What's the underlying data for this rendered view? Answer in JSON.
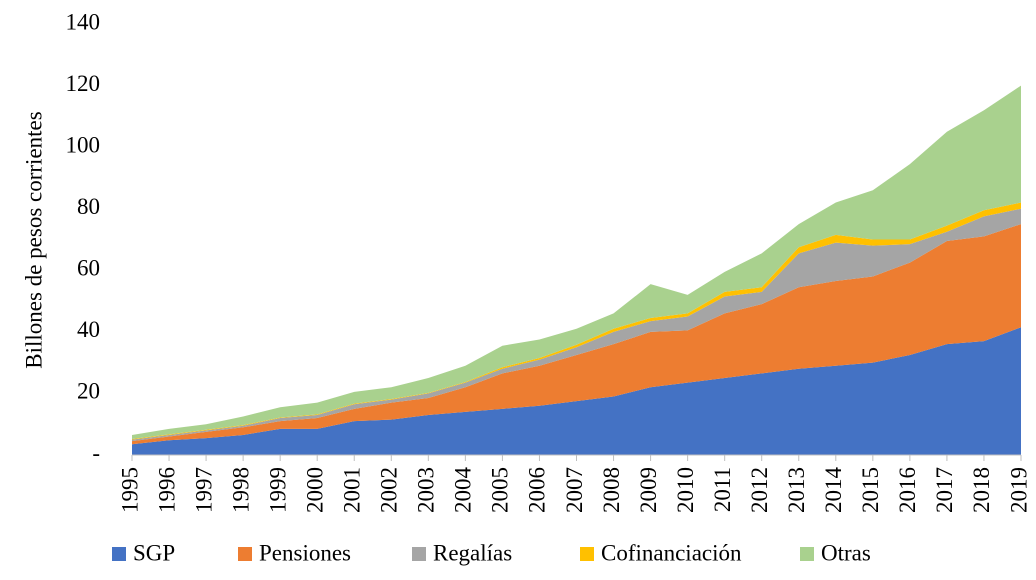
{
  "chart_data": {
    "type": "stacked-area",
    "y_label": "Billones de pesos corrientes",
    "x": [
      1995,
      1996,
      1997,
      1998,
      1999,
      2000,
      2001,
      2002,
      2003,
      2004,
      2005,
      2006,
      2007,
      2008,
      2009,
      2010,
      2011,
      2012,
      2013,
      2014,
      2015,
      2016,
      2017,
      2018,
      2019
    ],
    "xlim": [
      1995,
      2019
    ],
    "ylim": [
      0,
      140
    ],
    "yticks": [
      {
        "value": 0,
        "label": "-"
      },
      20,
      40,
      60,
      80,
      100,
      120,
      140
    ],
    "series": [
      {
        "name": "SGP",
        "color": "#4472c4",
        "values": [
          3.5,
          4.8,
          5.5,
          6.5,
          8.5,
          8.5,
          11,
          11.5,
          13,
          14,
          15,
          16,
          17.5,
          19,
          22,
          23.5,
          25,
          26.5,
          28,
          29,
          30,
          32.5,
          36,
          37,
          41.5
        ]
      },
      {
        "name": "Pensiones",
        "color": "#ed7d31",
        "values": [
          1,
          1.2,
          2,
          2.5,
          2.5,
          3.5,
          4,
          5.5,
          5.5,
          8,
          11.5,
          13,
          15,
          17,
          18,
          17,
          21,
          22.5,
          26.5,
          27.5,
          28,
          30,
          33.5,
          34,
          33.5
        ]
      },
      {
        "name": "Regalías",
        "color": "#a5a5a5",
        "values": [
          0.5,
          0.5,
          0.5,
          0.5,
          1,
          1,
          1.5,
          1,
          1.5,
          1.5,
          1.5,
          2,
          2.5,
          4,
          3.5,
          4.5,
          5.5,
          4,
          11,
          12.5,
          10,
          6,
          3,
          6.5,
          5
        ]
      },
      {
        "name": "Cofinanciación",
        "color": "#ffc000",
        "values": [
          0.2,
          0.2,
          0.2,
          0.2,
          0.2,
          0.2,
          0.2,
          0.2,
          0.2,
          0.2,
          0.5,
          0.5,
          0.8,
          1,
          1,
          1,
          1.5,
          1.5,
          2,
          2.5,
          2,
          1.5,
          2,
          2,
          2
        ]
      },
      {
        "name": "Otras",
        "color": "#a9d18e",
        "values": [
          1.3,
          1.8,
          1.8,
          2.8,
          3.3,
          3.8,
          3.8,
          3.8,
          4.8,
          5.3,
          7,
          6,
          5.2,
          5,
          11,
          6,
          6.5,
          11,
          7.5,
          10.5,
          16,
          24.5,
          30.5,
          32.5,
          38
        ]
      }
    ]
  }
}
